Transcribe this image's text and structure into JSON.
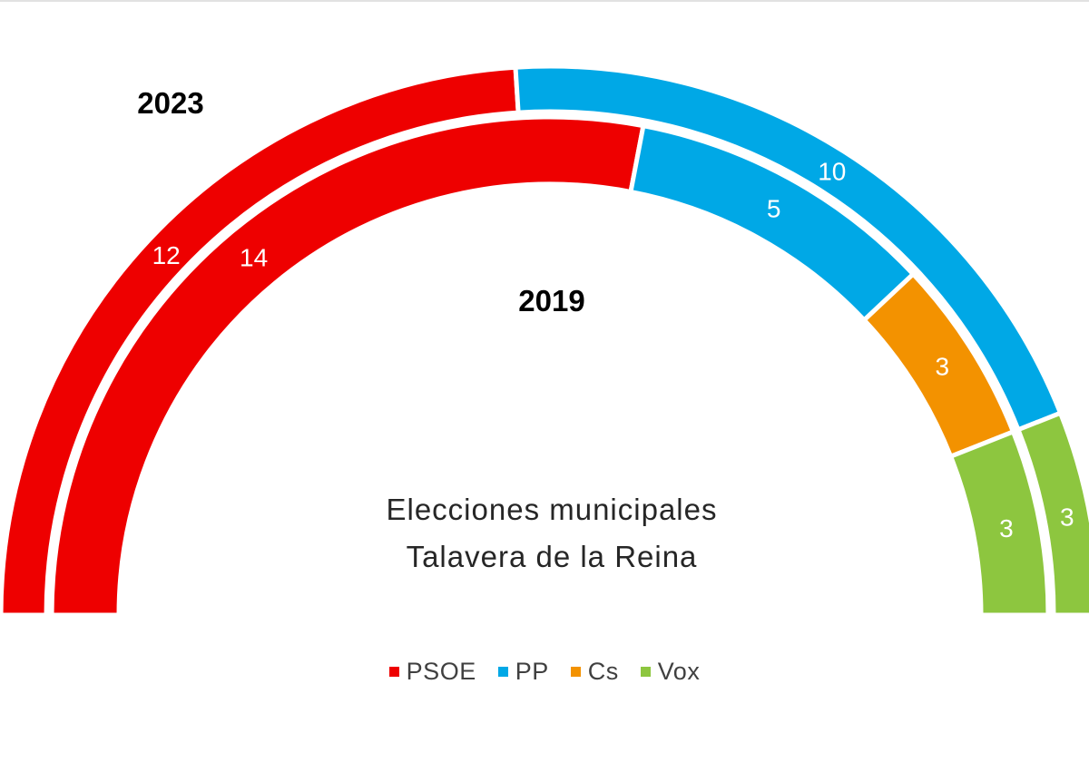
{
  "chart_data": {
    "type": "semicircle-doughnut",
    "title_line1": "Elecciones  municipales",
    "title_line2": "Talavera  de  la  Reina",
    "parties": [
      "PSOE",
      "PP",
      "Cs",
      "Vox"
    ],
    "colors": {
      "PSOE": "#ee0000",
      "PP": "#00a8e6",
      "Cs": "#f39200",
      "Vox": "#8dc63f"
    },
    "series": [
      {
        "name": "2023",
        "ring": "outer",
        "values": [
          {
            "party": "PSOE",
            "seats": 12,
            "label": "12"
          },
          {
            "party": "PP",
            "seats": 10,
            "label": "10"
          },
          {
            "party": "Vox",
            "seats": 3,
            "label": "3"
          }
        ]
      },
      {
        "name": "2019",
        "ring": "inner",
        "values": [
          {
            "party": "PSOE",
            "seats": 14,
            "label": "14"
          },
          {
            "party": "PP",
            "seats": 5,
            "label": "5"
          },
          {
            "party": "Cs",
            "seats": 3,
            "label": "3"
          },
          {
            "party": "Vox",
            "seats": 3,
            "label": "3"
          }
        ]
      }
    ],
    "legend": [
      {
        "label": "PSOE",
        "color": "#ee0000"
      },
      {
        "label": "PP",
        "color": "#00a8e6"
      },
      {
        "label": "Cs",
        "color": "#f39200"
      },
      {
        "label": "Vox",
        "color": "#8dc63f"
      }
    ]
  }
}
